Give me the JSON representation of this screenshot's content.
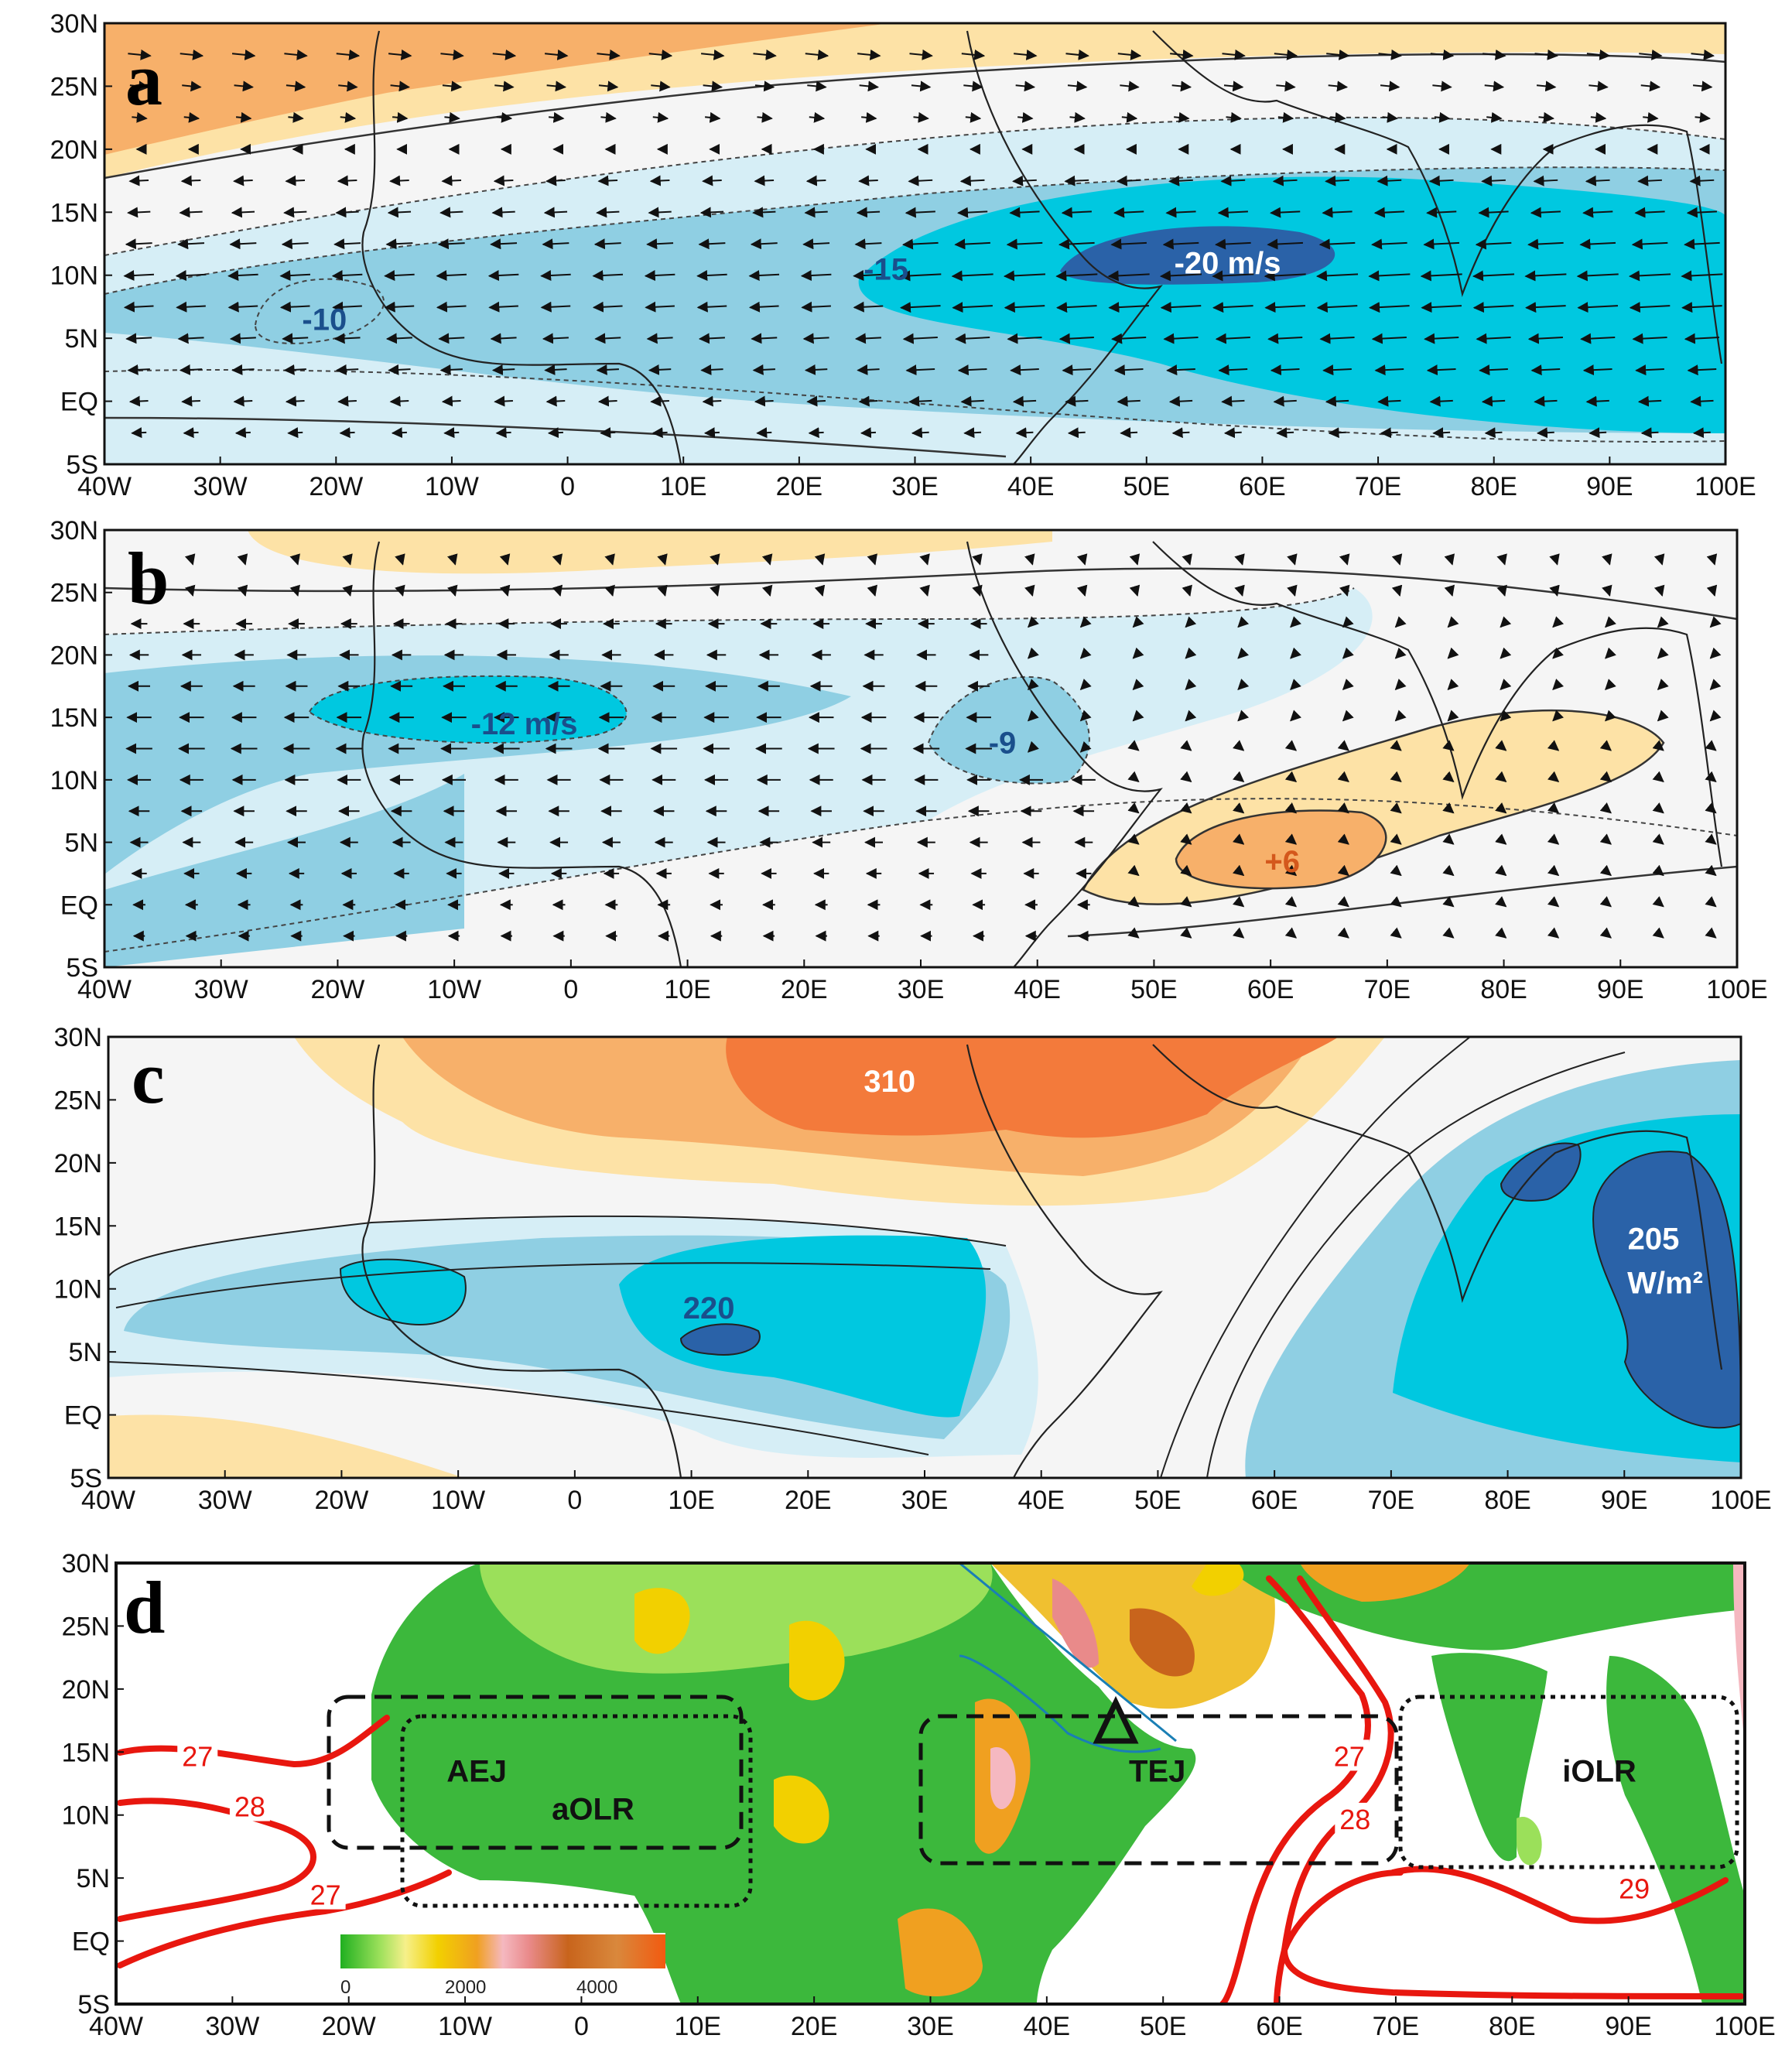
{
  "lon_ticks": [
    "40W",
    "30W",
    "20W",
    "10W",
    "0",
    "10E",
    "20E",
    "30E",
    "40E",
    "50E",
    "60E",
    "70E",
    "80E",
    "90E",
    "100E"
  ],
  "lat_ticks": [
    "30N",
    "25N",
    "20N",
    "15N",
    "10N",
    "5N",
    "EQ",
    "5S"
  ],
  "panels": [
    {
      "letter": "a",
      "annotations": [
        {
          "text": "-10",
          "lon": -21,
          "lat": 6.5,
          "color": "#1a4f8c"
        },
        {
          "text": "-15",
          "lon": 27.5,
          "lat": 10.5,
          "color": "#1a4f8c"
        },
        {
          "text": "-20 m/s",
          "lon": 57,
          "lat": 11,
          "color": "#ffffff"
        }
      ]
    },
    {
      "letter": "b",
      "annotations": [
        {
          "text": "-12 m/s",
          "lon": -4,
          "lat": 14.5,
          "color": "#1a4f8c"
        },
        {
          "text": "-9",
          "lon": 37,
          "lat": 13,
          "color": "#1a4f8c"
        },
        {
          "text": "+6",
          "lon": 61,
          "lat": 3.5,
          "color": "#d4581c"
        }
      ]
    },
    {
      "letter": "c",
      "annotations": [
        {
          "text": "310",
          "lon": 27,
          "lat": 26.5,
          "color": "#ffffff"
        },
        {
          "text": "220",
          "lon": 11.5,
          "lat": 8.5,
          "color": "#1a4f8c"
        },
        {
          "text": "205",
          "lon": 92.5,
          "lat": 14,
          "color": "#ffffff"
        },
        {
          "text": "W/m²",
          "lon": 93.5,
          "lat": 10.5,
          "color": "#ffffff"
        }
      ]
    },
    {
      "letter": "d",
      "annotations": [
        {
          "text": "AEJ",
          "lon": -9,
          "lat": 13.5,
          "color": "#111111"
        },
        {
          "text": "aOLR",
          "lon": 1,
          "lat": 10.5,
          "color": "#111111"
        },
        {
          "text": "TEJ",
          "lon": 49.5,
          "lat": 13.5,
          "color": "#111111"
        },
        {
          "text": "iOLR",
          "lon": 87.5,
          "lat": 13.5,
          "color": "#111111"
        }
      ],
      "isotherm_labels": [
        {
          "text": "27",
          "lon": -33,
          "lat": 14.5
        },
        {
          "text": "28",
          "lon": -28.5,
          "lat": 10.5
        },
        {
          "text": "27",
          "lon": -22,
          "lat": 3.5
        },
        {
          "text": "27",
          "lon": 66,
          "lat": 14.5
        },
        {
          "text": "28",
          "lon": 66.5,
          "lat": 9.5
        },
        {
          "text": "29",
          "lon": 90.5,
          "lat": 4
        }
      ],
      "colorbar_ticks": [
        "0",
        "2000",
        "4000"
      ]
    }
  ],
  "colors": {
    "dark_blue": "#2a62a8",
    "cyan": "#00c8e0",
    "mid_blue": "#8fcfe3",
    "light_blue": "#d6eef6",
    "near_white": "#f5f5f5",
    "light_orange": "#fde2a6",
    "orange": "#f7b06a",
    "red_orange": "#f37a3b",
    "isotherm_red": "#e8170f"
  }
}
